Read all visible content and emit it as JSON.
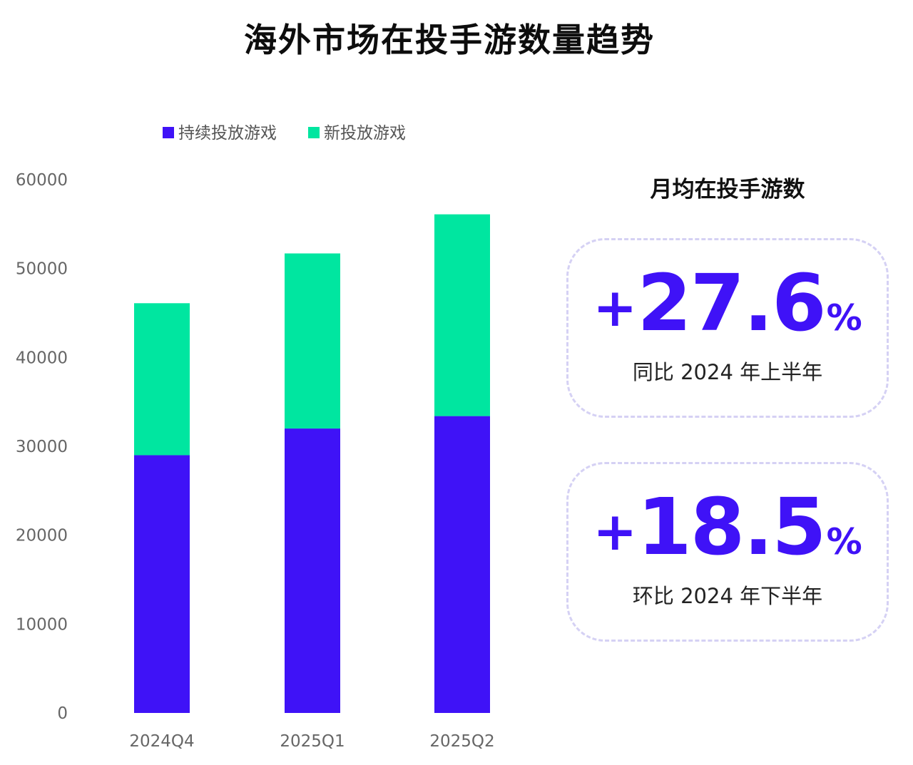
{
  "title": "海外市场在投手游数量趋势",
  "chart_data": {
    "type": "bar",
    "stacked": true,
    "categories": [
      "2024Q4",
      "2025Q1",
      "2025Q2"
    ],
    "series": [
      {
        "name": "持续投放游戏",
        "values": [
          29000,
          32000,
          33400
        ],
        "color": "#3f12f7"
      },
      {
        "name": "新投放游戏",
        "values": [
          17100,
          19700,
          22700
        ],
        "color": "#00e6a0"
      }
    ],
    "ylim": [
      0,
      60000
    ],
    "yticks": [
      0,
      10000,
      20000,
      30000,
      40000,
      50000,
      60000
    ],
    "legend_position": "top-left",
    "grid": false
  },
  "summary": {
    "title": "月均在投手游数",
    "stats": [
      {
        "sign": "+",
        "number": "27.6",
        "unit": "%",
        "caption": "同比 2024 年上半年"
      },
      {
        "sign": "+",
        "number": "18.5",
        "unit": "%",
        "caption": "环比 2024 年下半年"
      }
    ]
  },
  "colors": {
    "accent": "#3f12f7",
    "new_games": "#00e6a0",
    "card_border": "#d5d1f4"
  }
}
